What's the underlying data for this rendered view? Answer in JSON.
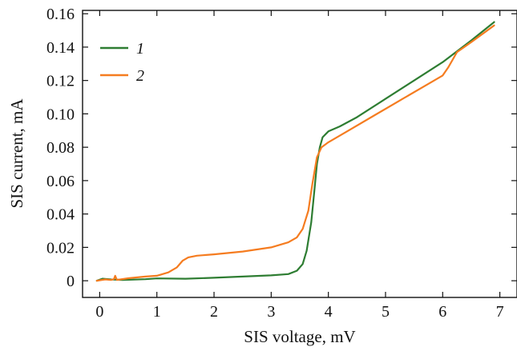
{
  "chart_data": {
    "type": "line",
    "title": "",
    "xlabel": "SIS voltage, mV",
    "ylabel": "SIS current, mA",
    "xlim": [
      -0.3,
      7.3
    ],
    "ylim": [
      -0.01,
      0.162
    ],
    "x_ticks": [
      0,
      1,
      2,
      3,
      4,
      5,
      6,
      7
    ],
    "x_tick_labels": [
      "0",
      "1",
      "2",
      "3",
      "4",
      "5",
      "6",
      "7"
    ],
    "y_ticks": [
      0,
      0.02,
      0.04,
      0.06,
      0.08,
      0.1,
      0.12,
      0.14,
      0.16
    ],
    "y_tick_labels": [
      "0",
      "0.02",
      "0.04",
      "0.06",
      "0.08",
      "0.10",
      "0.12",
      "0.14",
      "0.16"
    ],
    "grid": false,
    "legend": "top-left",
    "series": [
      {
        "name": "1",
        "color": "#2e7d32",
        "x": [
          -0.05,
          0.05,
          0.2,
          0.4,
          0.6,
          0.8,
          1.0,
          1.5,
          2.0,
          2.5,
          3.0,
          3.3,
          3.45,
          3.55,
          3.62,
          3.7,
          3.75,
          3.8,
          3.85,
          3.9,
          4.0,
          4.2,
          4.5,
          5.0,
          5.5,
          6.0,
          6.5,
          6.9
        ],
        "y": [
          0.0,
          0.0012,
          0.0008,
          0.0005,
          0.0007,
          0.0009,
          0.0014,
          0.0012,
          0.0018,
          0.0025,
          0.0032,
          0.004,
          0.006,
          0.01,
          0.018,
          0.035,
          0.052,
          0.07,
          0.08,
          0.086,
          0.0895,
          0.0925,
          0.098,
          0.109,
          0.12,
          0.131,
          0.144,
          0.155
        ]
      },
      {
        "name": "2",
        "color": "#f57c20",
        "x": [
          -0.05,
          0.1,
          0.2,
          0.25,
          0.27,
          0.3,
          0.5,
          0.8,
          1.0,
          1.2,
          1.35,
          1.45,
          1.55,
          1.7,
          2.0,
          2.5,
          3.0,
          3.3,
          3.45,
          3.55,
          3.65,
          3.72,
          3.8,
          3.88,
          4.0,
          4.3,
          4.8,
          5.3,
          5.8,
          6.0,
          6.1,
          6.25,
          6.5,
          6.9
        ],
        "y": [
          0.0,
          0.0008,
          0.0005,
          0.001,
          0.003,
          0.0005,
          0.0015,
          0.0025,
          0.003,
          0.005,
          0.008,
          0.012,
          0.014,
          0.015,
          0.0158,
          0.0175,
          0.02,
          0.023,
          0.026,
          0.031,
          0.042,
          0.058,
          0.074,
          0.08,
          0.083,
          0.089,
          0.099,
          0.109,
          0.119,
          0.123,
          0.128,
          0.137,
          0.143,
          0.153
        ]
      }
    ]
  }
}
